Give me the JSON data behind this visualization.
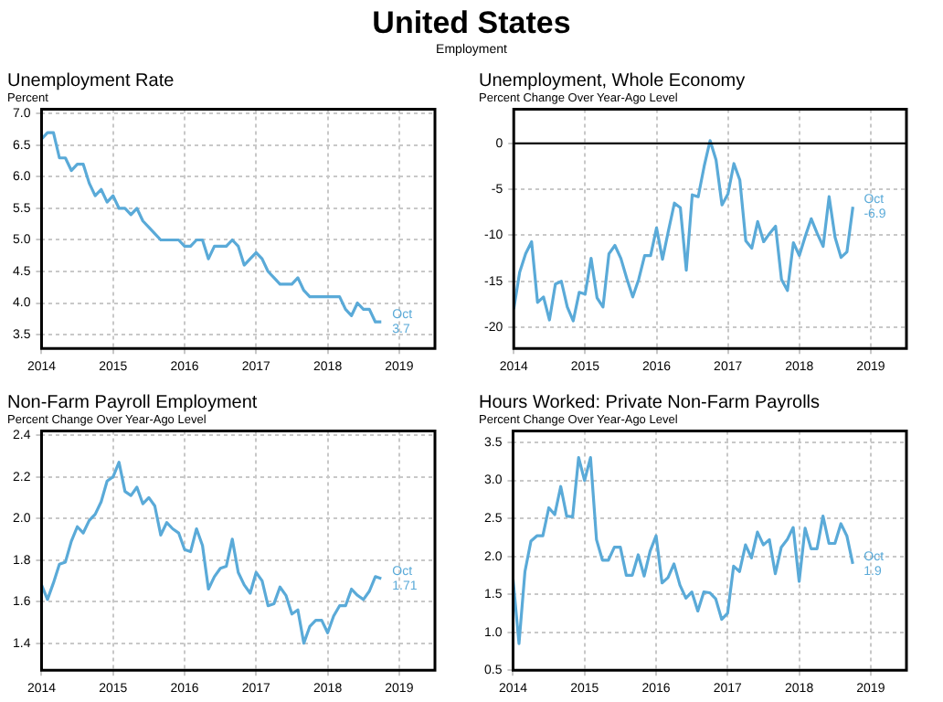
{
  "chart_data": [
    {
      "type": "other",
      "title": "United States",
      "subtitle": "Employment"
    },
    {
      "type": "line",
      "title": "Unemployment Rate",
      "subtitle": "Percent",
      "x": [
        "2014-01",
        "2014-02",
        "2014-03",
        "2014-04",
        "2014-05",
        "2014-06",
        "2014-07",
        "2014-08",
        "2014-09",
        "2014-10",
        "2014-11",
        "2014-12",
        "2015-01",
        "2015-02",
        "2015-03",
        "2015-04",
        "2015-05",
        "2015-06",
        "2015-07",
        "2015-08",
        "2015-09",
        "2015-10",
        "2015-11",
        "2015-12",
        "2016-01",
        "2016-02",
        "2016-03",
        "2016-04",
        "2016-05",
        "2016-06",
        "2016-07",
        "2016-08",
        "2016-09",
        "2016-10",
        "2016-11",
        "2016-12",
        "2017-01",
        "2017-02",
        "2017-03",
        "2017-04",
        "2017-05",
        "2017-06",
        "2017-07",
        "2017-08",
        "2017-09",
        "2017-10",
        "2017-11",
        "2017-12",
        "2018-01",
        "2018-02",
        "2018-03",
        "2018-04",
        "2018-05",
        "2018-06",
        "2018-07",
        "2018-08",
        "2018-09",
        "2018-10"
      ],
      "xlim": [
        "2014-01",
        "2019-07"
      ],
      "xticks": [
        "2014",
        "2015",
        "2016",
        "2017",
        "2018",
        "2019"
      ],
      "ylim": [
        3.28,
        7.07
      ],
      "yticks": [
        {
          "value": 3.5,
          "label": "3.5"
        },
        {
          "value": 4,
          "label": "4.0"
        },
        {
          "value": 4.5,
          "label": "4.5"
        },
        {
          "value": 5,
          "label": "5.0"
        },
        {
          "value": 5.5,
          "label": "5.5"
        },
        {
          "value": 6,
          "label": "6.0"
        },
        {
          "value": 6.5,
          "label": "6.5"
        },
        {
          "value": 7,
          "label": "7.0"
        }
      ],
      "grid": true,
      "legend": false,
      "marker": "none",
      "line_style": "solid",
      "annotations": [
        {
          "text": "Oct 3.7",
          "x": "2018-10",
          "y": 3.7
        }
      ],
      "series": [
        {
          "color": "#5aaad8",
          "values": [
            6.6,
            6.7,
            6.7,
            6.3,
            6.3,
            6.1,
            6.2,
            6.2,
            5.9,
            5.7,
            5.8,
            5.6,
            5.7,
            5.5,
            5.5,
            5.4,
            5.5,
            5.3,
            5.2,
            5.1,
            5.0,
            5.0,
            5.0,
            5.0,
            4.9,
            4.9,
            5.0,
            5.0,
            4.7,
            4.9,
            4.9,
            4.9,
            5.0,
            4.9,
            4.6,
            4.7,
            4.8,
            4.7,
            4.5,
            4.4,
            4.3,
            4.3,
            4.3,
            4.4,
            4.2,
            4.1,
            4.1,
            4.1,
            4.1,
            4.1,
            4.1,
            3.9,
            3.8,
            4.0,
            3.9,
            3.9,
            3.7,
            3.7
          ]
        }
      ]
    },
    {
      "type": "line",
      "title": "Unemployment, Whole Economy",
      "subtitle": "Percent Change Over Year-Ago Level",
      "x": [
        "2014-01",
        "2014-02",
        "2014-03",
        "2014-04",
        "2014-05",
        "2014-06",
        "2014-07",
        "2014-08",
        "2014-09",
        "2014-10",
        "2014-11",
        "2014-12",
        "2015-01",
        "2015-02",
        "2015-03",
        "2015-04",
        "2015-05",
        "2015-06",
        "2015-07",
        "2015-08",
        "2015-09",
        "2015-10",
        "2015-11",
        "2015-12",
        "2016-01",
        "2016-02",
        "2016-03",
        "2016-04",
        "2016-05",
        "2016-06",
        "2016-07",
        "2016-08",
        "2016-09",
        "2016-10",
        "2016-11",
        "2016-12",
        "2017-01",
        "2017-02",
        "2017-03",
        "2017-04",
        "2017-05",
        "2017-06",
        "2017-07",
        "2017-08",
        "2017-09",
        "2017-10",
        "2017-11",
        "2017-12",
        "2018-01",
        "2018-02",
        "2018-03",
        "2018-04",
        "2018-05",
        "2018-06",
        "2018-07",
        "2018-08",
        "2018-09",
        "2018-10"
      ],
      "xlim": [
        "2014-01",
        "2019-07"
      ],
      "xticks": [
        "2014",
        "2015",
        "2016",
        "2017",
        "2018",
        "2019"
      ],
      "ylim": [
        -22.3,
        3.7
      ],
      "yticks": [
        -20,
        -15,
        -10,
        -5,
        0
      ],
      "grid": true,
      "legend": false,
      "marker": "none",
      "line_style": "solid",
      "ref_lines": [
        {
          "axis": "y",
          "value": 0,
          "color": "#000000"
        }
      ],
      "annotations": [
        {
          "text": "Oct -6.9",
          "x": "2018-10",
          "y": -6.9
        }
      ],
      "series": [
        {
          "color": "#5aaad8",
          "values": [
            -18,
            -14,
            -12,
            -10.7,
            -17.3,
            -16.7,
            -19.2,
            -15.3,
            -15,
            -17.8,
            -19.3,
            -16.2,
            -16.4,
            -12.5,
            -16.8,
            -17.8,
            -12,
            -11.1,
            -12.5,
            -14.7,
            -16.7,
            -14.8,
            -12.2,
            -12.2,
            -9.2,
            -12.6,
            -9.5,
            -6.5,
            -7,
            -13.8,
            -5.6,
            -5.8,
            -2.5,
            0.3,
            -1.8,
            -6.7,
            -5.5,
            -2.2,
            -4,
            -10.6,
            -11.4,
            -8.5,
            -10.7,
            -9.8,
            -9,
            -14.8,
            -16,
            -10.8,
            -12.2,
            -10.1,
            -8.2,
            -9.8,
            -11.2,
            -5.8,
            -10.2,
            -12.4,
            -11.8,
            -6.9
          ]
        }
      ]
    },
    {
      "type": "line",
      "title": "Non-Farm Payroll Employment",
      "subtitle": "Percent Change Over Year-Ago Level",
      "x": [
        "2014-01",
        "2014-02",
        "2014-03",
        "2014-04",
        "2014-05",
        "2014-06",
        "2014-07",
        "2014-08",
        "2014-09",
        "2014-10",
        "2014-11",
        "2014-12",
        "2015-01",
        "2015-02",
        "2015-03",
        "2015-04",
        "2015-05",
        "2015-06",
        "2015-07",
        "2015-08",
        "2015-09",
        "2015-10",
        "2015-11",
        "2015-12",
        "2016-01",
        "2016-02",
        "2016-03",
        "2016-04",
        "2016-05",
        "2016-06",
        "2016-07",
        "2016-08",
        "2016-09",
        "2016-10",
        "2016-11",
        "2016-12",
        "2017-01",
        "2017-02",
        "2017-03",
        "2017-04",
        "2017-05",
        "2017-06",
        "2017-07",
        "2017-08",
        "2017-09",
        "2017-10",
        "2017-11",
        "2017-12",
        "2018-01",
        "2018-02",
        "2018-03",
        "2018-04",
        "2018-05",
        "2018-06",
        "2018-07",
        "2018-08",
        "2018-09",
        "2018-10"
      ],
      "xlim": [
        "2014-01",
        "2019-07"
      ],
      "xticks": [
        "2014",
        "2015",
        "2016",
        "2017",
        "2018",
        "2019"
      ],
      "ylim": [
        1.27,
        2.42
      ],
      "yticks": [
        {
          "value": 1.4,
          "label": "1.4"
        },
        {
          "value": 1.6,
          "label": "1.6"
        },
        {
          "value": 1.8,
          "label": "1.8"
        },
        {
          "value": 2,
          "label": "2.0"
        },
        {
          "value": 2.2,
          "label": "2.2"
        },
        {
          "value": 2.4,
          "label": "2.4"
        }
      ],
      "grid": true,
      "legend": false,
      "marker": "none",
      "line_style": "solid",
      "annotations": [
        {
          "text": "Oct 1.71",
          "x": "2018-10",
          "y": 1.71
        }
      ],
      "series": [
        {
          "color": "#5aaad8",
          "values": [
            1.68,
            1.61,
            1.69,
            1.78,
            1.79,
            1.89,
            1.96,
            1.93,
            1.99,
            2.02,
            2.08,
            2.18,
            2.2,
            2.27,
            2.13,
            2.11,
            2.15,
            2.07,
            2.1,
            2.06,
            1.92,
            1.98,
            1.95,
            1.93,
            1.85,
            1.84,
            1.95,
            1.87,
            1.66,
            1.72,
            1.76,
            1.77,
            1.9,
            1.74,
            1.68,
            1.64,
            1.74,
            1.7,
            1.58,
            1.59,
            1.67,
            1.63,
            1.54,
            1.56,
            1.4,
            1.48,
            1.51,
            1.51,
            1.45,
            1.53,
            1.58,
            1.58,
            1.66,
            1.63,
            1.61,
            1.65,
            1.72,
            1.71
          ]
        }
      ]
    },
    {
      "type": "line",
      "title": "Hours Worked: Private Non-Farm Payrolls",
      "subtitle": "Percent Change Over Year-Ago Level",
      "x": [
        "2014-01",
        "2014-02",
        "2014-03",
        "2014-04",
        "2014-05",
        "2014-06",
        "2014-07",
        "2014-08",
        "2014-09",
        "2014-10",
        "2014-11",
        "2014-12",
        "2015-01",
        "2015-02",
        "2015-03",
        "2015-04",
        "2015-05",
        "2015-06",
        "2015-07",
        "2015-08",
        "2015-09",
        "2015-10",
        "2015-11",
        "2015-12",
        "2016-01",
        "2016-02",
        "2016-03",
        "2016-04",
        "2016-05",
        "2016-06",
        "2016-07",
        "2016-08",
        "2016-09",
        "2016-10",
        "2016-11",
        "2016-12",
        "2017-01",
        "2017-02",
        "2017-03",
        "2017-04",
        "2017-05",
        "2017-06",
        "2017-07",
        "2017-08",
        "2017-09",
        "2017-10",
        "2017-11",
        "2017-12",
        "2018-01",
        "2018-02",
        "2018-03",
        "2018-04",
        "2018-05",
        "2018-06",
        "2018-07",
        "2018-08",
        "2018-09",
        "2018-10"
      ],
      "xlim": [
        "2014-01",
        "2019-07"
      ],
      "xticks": [
        "2014",
        "2015",
        "2016",
        "2017",
        "2018",
        "2019"
      ],
      "ylim": [
        0.5,
        3.65
      ],
      "yticks": [
        {
          "value": 0.5,
          "label": "0.5"
        },
        {
          "value": 1,
          "label": "1.0"
        },
        {
          "value": 1.5,
          "label": "1.5"
        },
        {
          "value": 2,
          "label": "2.0"
        },
        {
          "value": 2.5,
          "label": "2.5"
        },
        {
          "value": 3,
          "label": "3.0"
        },
        {
          "value": 3.5,
          "label": "3.5"
        }
      ],
      "grid": true,
      "legend": false,
      "marker": "none",
      "line_style": "solid",
      "annotations": [
        {
          "text": "Oct 1.9",
          "x": "2018-10",
          "y": 1.9
        }
      ],
      "series": [
        {
          "color": "#5aaad8",
          "values": [
            1.7,
            0.85,
            1.8,
            2.2,
            2.27,
            2.27,
            2.64,
            2.55,
            2.92,
            2.53,
            2.52,
            3.3,
            3.0,
            3.3,
            2.22,
            1.95,
            1.95,
            2.12,
            2.12,
            1.75,
            1.75,
            2.02,
            1.74,
            2.07,
            2.27,
            1.65,
            1.72,
            1.9,
            1.62,
            1.45,
            1.53,
            1.28,
            1.53,
            1.52,
            1.44,
            1.17,
            1.25,
            1.87,
            1.8,
            2.15,
            1.98,
            2.32,
            2.15,
            2.22,
            1.77,
            2.12,
            2.22,
            2.38,
            1.67,
            2.37,
            2.1,
            2.1,
            2.53,
            2.17,
            2.17,
            2.43,
            2.27,
            1.9
          ]
        }
      ]
    }
  ]
}
